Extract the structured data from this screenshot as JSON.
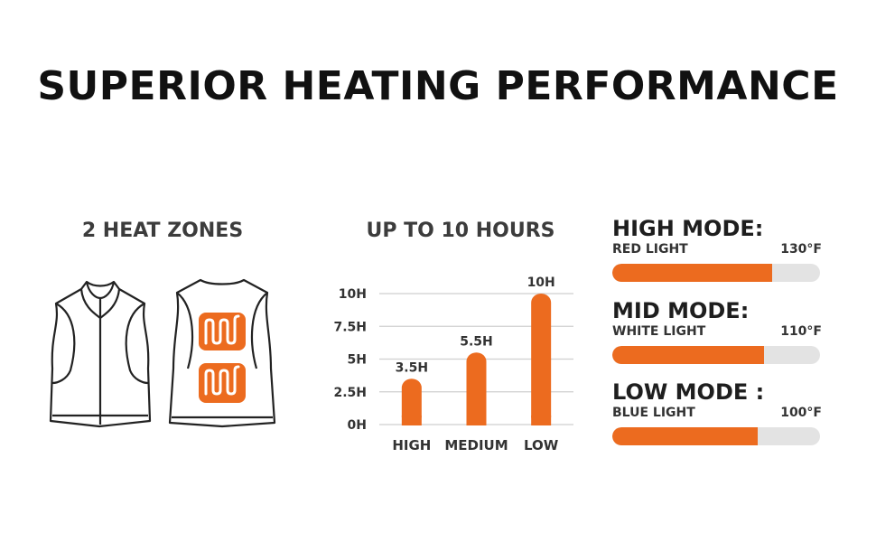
{
  "title": "SUPERIOR HEATING PERFORMANCE",
  "zones": {
    "title": "2 HEAT ZONES"
  },
  "hours": {
    "title": "UP TO 10 HOURS"
  },
  "chart_data": {
    "type": "bar",
    "title": "UP TO 10 HOURS",
    "categories": [
      "HIGH",
      "MEDIUM",
      "LOW"
    ],
    "values": [
      3.5,
      5.5,
      10
    ],
    "data_labels": [
      "3.5H",
      "5.5H",
      "10H"
    ],
    "yticks": [
      0,
      2.5,
      5,
      7.5,
      10
    ],
    "ytick_labels": [
      "0H",
      "2.5H",
      "5H",
      "7.5H",
      "10H"
    ],
    "ylim": [
      0,
      10
    ],
    "grid": true,
    "bar_color": "#ec6b1f"
  },
  "modes": [
    {
      "name": "HIGH MODE:",
      "light": "RED LIGHT",
      "temp": "130°F",
      "level": 0.77
    },
    {
      "name": "MID MODE:",
      "light": "WHITE LIGHT",
      "temp": "110°F",
      "level": 0.73
    },
    {
      "name": "LOW MODE :",
      "light": "BLUE LIGHT",
      "temp": "100°F",
      "level": 0.7
    }
  ],
  "colors": {
    "accent": "#ec6b1f",
    "track": "#e3e3e3",
    "text": "#1e1e1e"
  }
}
